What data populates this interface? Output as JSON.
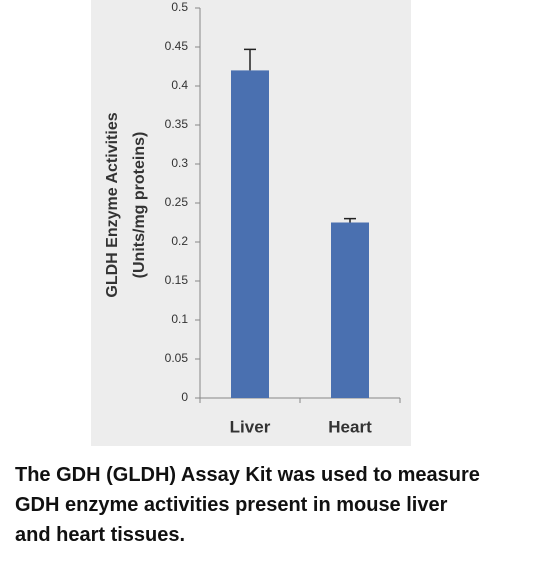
{
  "chart_data": {
    "type": "bar",
    "ylabel": [
      "GLDH Enzyme Activities",
      "(Units/mg proteins)"
    ],
    "categories": [
      "Liver",
      "Heart"
    ],
    "series": [
      {
        "color": "#4a70b0",
        "values": [
          0.42,
          0.225
        ],
        "errors": [
          0.027,
          0.005
        ]
      }
    ],
    "ylim": [
      0,
      0.5
    ],
    "yticks": [
      0,
      0.05,
      0.1,
      0.15,
      0.2,
      0.25,
      0.3,
      0.35,
      0.4,
      0.45,
      0.5
    ]
  },
  "caption": [
    "The GDH (GLDH) Assay Kit was used to measure",
    "GDH enzyme activities present in mouse liver",
    "and heart tissues."
  ]
}
